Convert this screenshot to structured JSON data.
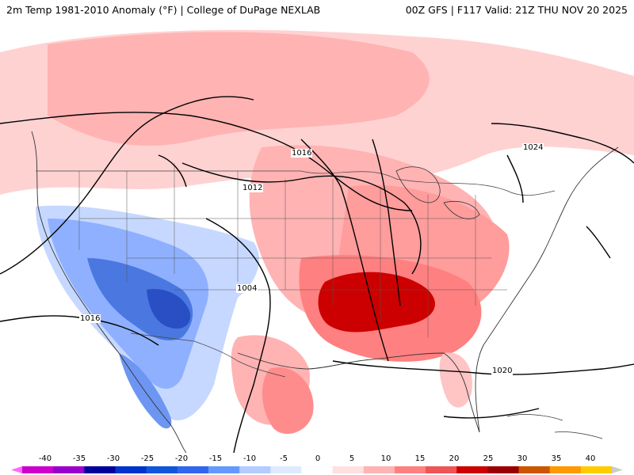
{
  "header": {
    "title_left": "2m Temp 1981-2010 Anomaly (°F) | College of DuPage NEXLAB",
    "title_right": "00Z GFS | F117 Valid: 21Z THU NOV 20 2025"
  },
  "isobar_labels": [
    "1016",
    "1012",
    "1024",
    "1004",
    "1016",
    "1020"
  ],
  "colorbar": {
    "ticks": [
      "-40",
      "-35",
      "-30",
      "-25",
      "-20",
      "-15",
      "-10",
      "-5",
      "0",
      "5",
      "10",
      "15",
      "20",
      "25",
      "30",
      "35",
      "40"
    ],
    "colors": [
      "#ff66ff",
      "#cc00cc",
      "#9900cc",
      "#000099",
      "#0033cc",
      "#1155dd",
      "#3366ee",
      "#6699ff",
      "#b3ccff",
      "#dfeaff",
      "#ffffff",
      "#ffe0e0",
      "#ffb3b3",
      "#ff8080",
      "#ee5555",
      "#cc0000",
      "#990000",
      "#cc5500",
      "#ff9900",
      "#ffcc00",
      "#cccccc"
    ]
  },
  "map_colors": {
    "warm_light": "#ffd9d9",
    "warm_mid": "#ffb3b3",
    "warm_strong": "#ff8c8c",
    "warm_hot": "#ee5555",
    "warm_extreme": "#cc0000",
    "cool_light": "#cfe0ff",
    "cool_mid": "#9dbcff",
    "cool_strong": "#5b8cf0",
    "cool_deep": "#2f5fd8",
    "cool_extreme": "#1a3ea8"
  }
}
